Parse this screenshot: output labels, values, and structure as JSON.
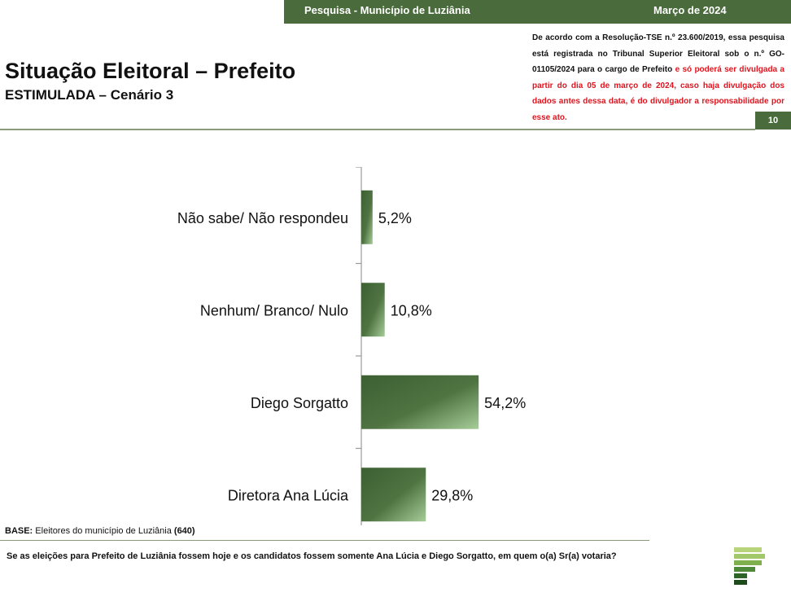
{
  "header": {
    "survey": "Pesquisa - Município de Luziânia",
    "date": "Março de 2024"
  },
  "title": "Situação Eleitoral – Prefeito",
  "subtitle": "ESTIMULADA – Cenário 3",
  "legal": {
    "black_text": "De acordo com a Resolução-TSE n.º 23.600/2019, essa pesquisa está registrada no Tribunal Superior Eleitoral sob o n.º GO-01105/2024 para o cargo de Prefeito",
    "red_text": " e só poderá ser divulgada a partir do dia 05 de março de 2024, caso haja divulgação dos dados antes dessa data, é do divulgador a responsabilidade por esse ato."
  },
  "page_number": "10",
  "base": {
    "label": "BASE:",
    "text": " Eleitores do município de Luziânia ",
    "count": "(640)"
  },
  "question": "Se as eleições para Prefeito de Luziânia fossem hoje e os candidatos fossem somente Ana Lúcia e Diego Sorgatto, em quem o(a) Sr(a) votaria?",
  "colors": {
    "brand_green": "#4a6b3c",
    "bar_dark": "#3d5f32",
    "bar_light": "#a6cc98",
    "legal_red": "#e0141e"
  },
  "chart_data": {
    "type": "bar",
    "orientation": "horizontal",
    "categories": [
      "Não sabe/ Não respondeu",
      "Nenhum/ Branco/ Nulo",
      "Diego Sorgatto",
      "Diretora Ana Lúcia"
    ],
    "values": [
      5.2,
      10.8,
      54.2,
      29.8
    ],
    "value_labels": [
      "5,2%",
      "10,8%",
      "54,2%",
      "29,8%"
    ],
    "unit": "%",
    "grid": false
  }
}
